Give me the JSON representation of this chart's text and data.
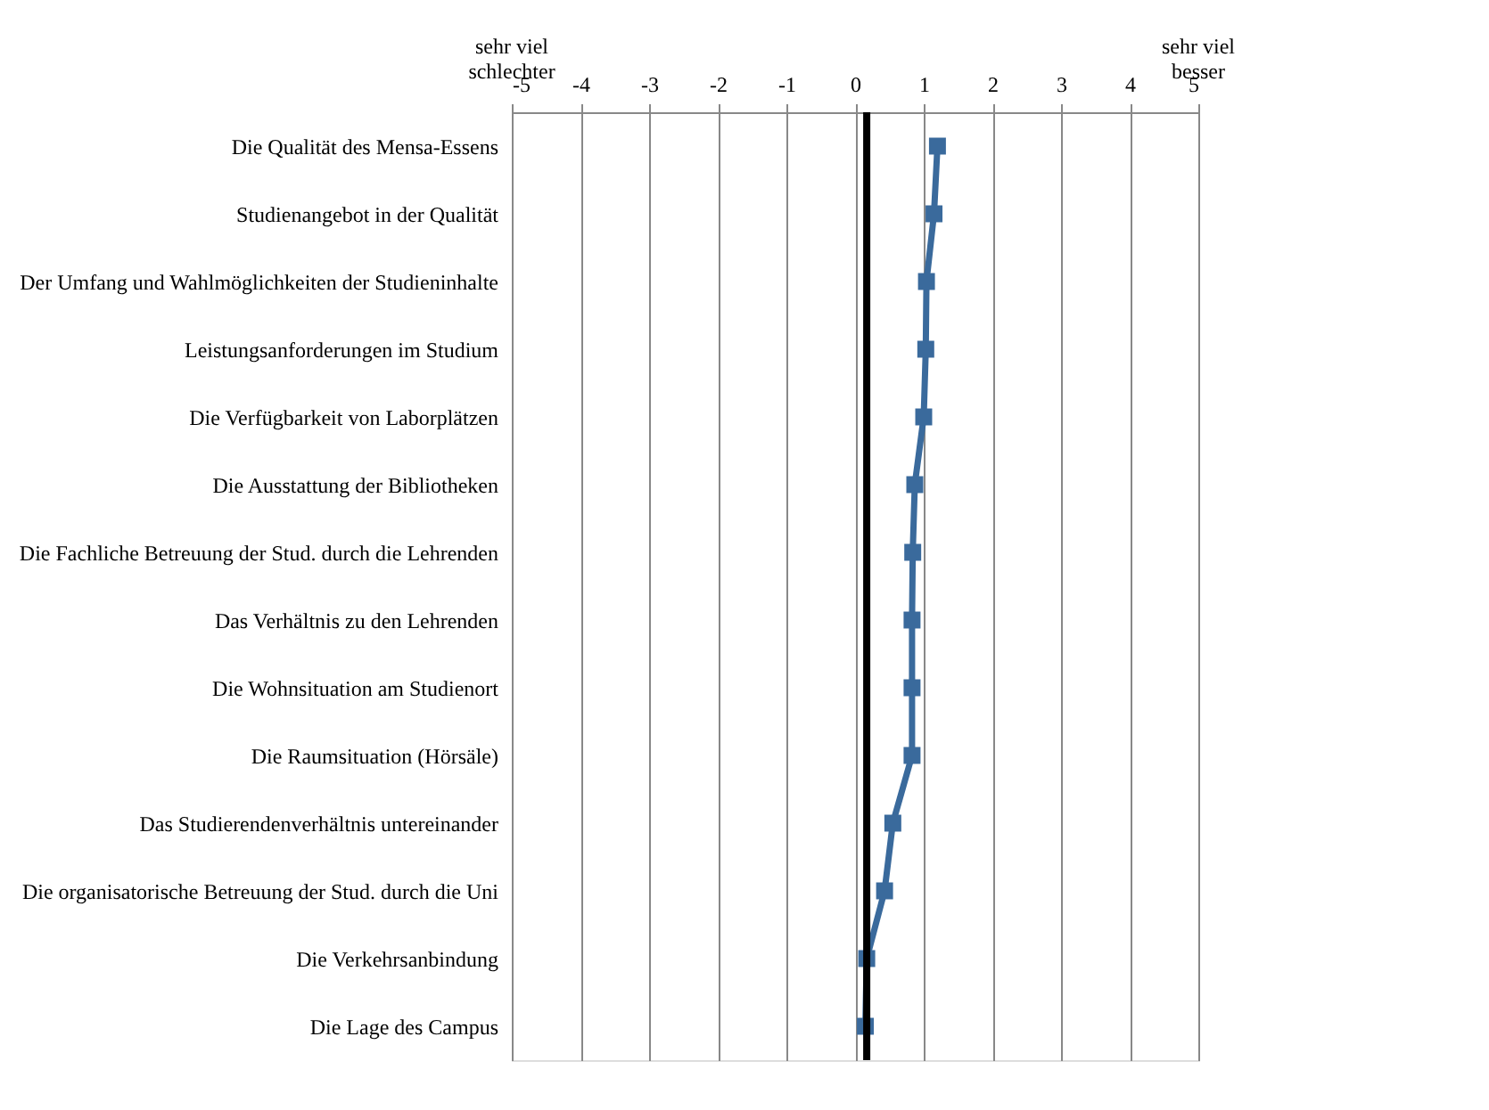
{
  "chart_data": {
    "type": "line",
    "orientation": "horizontal",
    "categories": [
      "Die Qualität des Mensa-Essens",
      "Studienangebot in der Qualität",
      "Der Umfang und Wahlmöglichkeiten der Studieninhalte",
      "Leistungsanforderungen im Studium",
      "Die Verfügbarkeit von Laborplätzen",
      "Die Ausstattung der Bibliotheken",
      "Die Fachliche Betreuung der Stud. durch die Lehrenden",
      "Das Verhältnis zu den Lehrenden",
      "Die Wohnsituation am Studienort",
      "Die Raumsituation (Hörsäle)",
      "Das Studierendenverhältnis untereinander",
      "Die organisatorische Betreuung der Stud. durch die Uni",
      "Die Verkehrsanbindung",
      "Die Lage des Campus"
    ],
    "series": [
      {
        "color": "#3a6a9c",
        "values": [
          1.2,
          1.15,
          1.04,
          1.03,
          1.0,
          0.87,
          0.84,
          0.83,
          0.83,
          0.83,
          0.55,
          0.43,
          0.17,
          0.15
        ]
      }
    ],
    "xlim": [
      -5,
      5
    ],
    "xticks": [
      -5,
      -4,
      -3,
      -2,
      -1,
      0,
      1,
      2,
      3,
      4,
      5
    ],
    "ref_lines": [
      {
        "axis": "x",
        "value": 0.17,
        "color": "#000000"
      }
    ],
    "annotations": [
      "sehr viel\nschlechter",
      "sehr viel\nbesser"
    ],
    "grid": "x",
    "legend": false,
    "marker": "square",
    "line_style": "solid"
  }
}
